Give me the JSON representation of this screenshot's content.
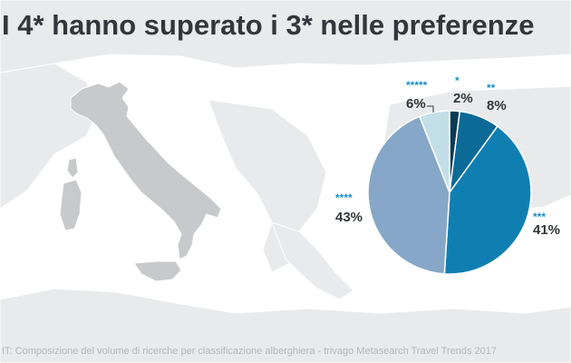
{
  "title": "I 4* hanno superato i 3* nelle preferenze",
  "footnote": "IT: Composizione del volume di ricerche per classificazione alberghiera - trivago Metasearch Travel Trends 2017",
  "chart_data": {
    "type": "pie",
    "title": "I 4* hanno superato i 3* nelle preferenze",
    "slices": [
      {
        "label": "*",
        "value": 2,
        "display": "2%",
        "color": "#0c3a56"
      },
      {
        "label": "**",
        "value": 8,
        "display": "8%",
        "color": "#0c6a96"
      },
      {
        "label": "***",
        "value": 41,
        "display": "41%",
        "color": "#0f7fb2"
      },
      {
        "label": "****",
        "value": 43,
        "display": "43%",
        "color": "#86a7c7"
      },
      {
        "label": "*****",
        "value": 6,
        "display": "6%",
        "color": "#c2dfe8"
      }
    ]
  }
}
